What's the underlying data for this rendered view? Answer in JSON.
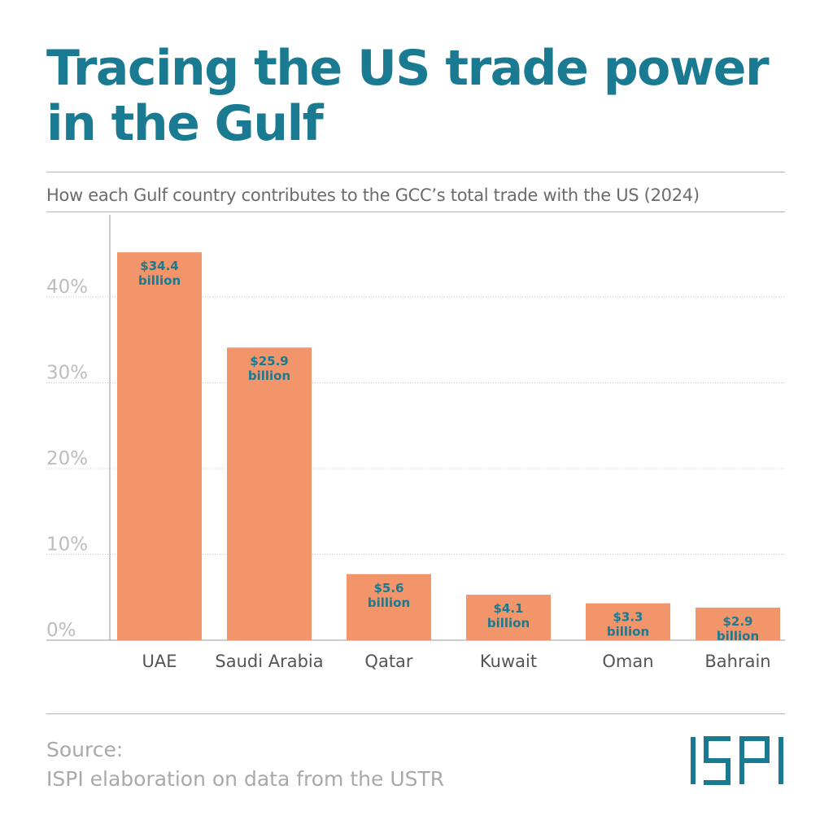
{
  "title": "Tracing the US trade power in the Gulf",
  "subtitle": "How each Gulf country contributes to the GCC’s total trade with the US (2024)",
  "source": {
    "heading": "Source:",
    "text": "ISPI elaboration on data from the USTR"
  },
  "logo": {
    "text": "ISPI",
    "color": "#1a7a91"
  },
  "chart_data": {
    "type": "bar",
    "title": "Tracing the US trade power in the Gulf",
    "subtitle": "How each Gulf country contributes to the GCC’s total trade with the US (2024)",
    "categories": [
      "UAE",
      "Saudi Arabia",
      "Qatar",
      "Kuwait",
      "Oman",
      "Bahrain"
    ],
    "values": [
      45.2,
      34.1,
      7.7,
      5.3,
      4.3,
      3.8
    ],
    "value_unit": "%",
    "data_labels": [
      [
        "$34.4",
        "billion"
      ],
      [
        "$25.9",
        "billion"
      ],
      [
        "$5.6",
        "billion"
      ],
      [
        "$4.1",
        "billion"
      ],
      [
        "$3.3",
        "billion"
      ],
      [
        "$2.9",
        "billion"
      ]
    ],
    "yticks": [
      0,
      10,
      20,
      30,
      40
    ],
    "ytick_labels": [
      "0%",
      "10%",
      "20%",
      "30%",
      "40%"
    ],
    "ylim": [
      0,
      50
    ],
    "grid": true,
    "legend": "none",
    "bar_color": "#f2956b",
    "label_color": "#1a7a91"
  }
}
